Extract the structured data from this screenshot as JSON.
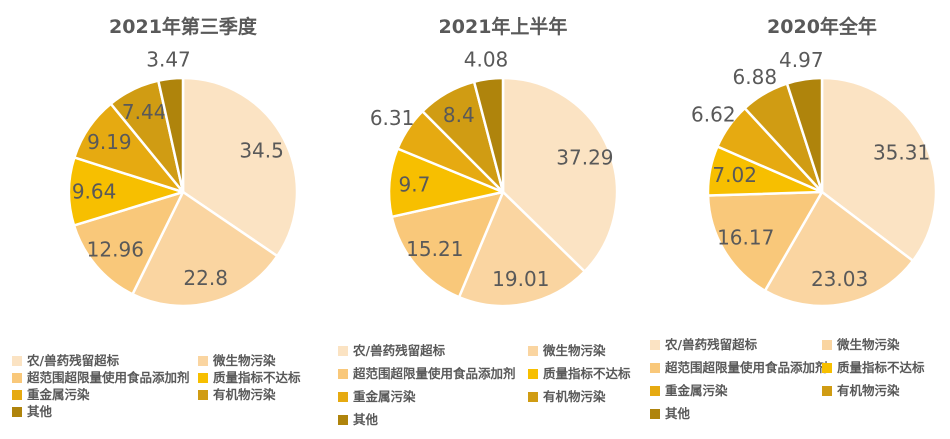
{
  "canvas": {
    "background": "#FFFFFF",
    "text_color": "#595959"
  },
  "chart_data": [
    {
      "type": "pie",
      "title": "2021年第三季度",
      "unit": "percent",
      "categories": [
        "农/兽药残留超标",
        "微生物污染",
        "超范围超限量使用食品添加剂",
        "质量指标不达标",
        "重金属污染",
        "有机物污染",
        "其他"
      ],
      "values": [
        34.5,
        22.8,
        12.96,
        9.64,
        9.19,
        7.44,
        3.47
      ],
      "colors": [
        "#FBE3C3",
        "#FAD5A1",
        "#F9C87A",
        "#F7BF00",
        "#E6AA11",
        "#D09C13",
        "#AF840C"
      ],
      "label_color": "#595959",
      "legend_position": "bottom",
      "start_angle_deg": 90,
      "direction": "clockwise"
    },
    {
      "type": "pie",
      "title": "2021年上半年",
      "unit": "percent",
      "categories": [
        "农/兽药残留超标",
        "微生物污染",
        "超范围超限量使用食品添加剂",
        "质量指标不达标",
        "重金属污染",
        "有机物污染",
        "其他"
      ],
      "values": [
        37.29,
        19.01,
        15.21,
        9.7,
        6.31,
        8.4,
        4.08
      ],
      "colors": [
        "#FBE3C3",
        "#FAD5A1",
        "#F9C87A",
        "#F7BF00",
        "#E6AA11",
        "#D09C13",
        "#AF840C"
      ],
      "label_color": "#595959",
      "legend_position": "bottom",
      "start_angle_deg": 90,
      "direction": "clockwise"
    },
    {
      "type": "pie",
      "title": "2020年全年",
      "unit": "percent",
      "categories": [
        "农/兽药残留超标",
        "微生物污染",
        "超范围超限量使用食品添加剂",
        "质量指标不达标",
        "重金属污染",
        "有机物污染",
        "其他"
      ],
      "values": [
        35.31,
        23.03,
        16.17,
        7.02,
        6.62,
        6.88,
        4.97
      ],
      "colors": [
        "#FBE3C3",
        "#FAD5A1",
        "#F9C87A",
        "#F7BF00",
        "#E6AA11",
        "#D09C13",
        "#AF840C"
      ],
      "label_color": "#595959",
      "legend_position": "bottom",
      "start_angle_deg": 90,
      "direction": "clockwise"
    }
  ]
}
